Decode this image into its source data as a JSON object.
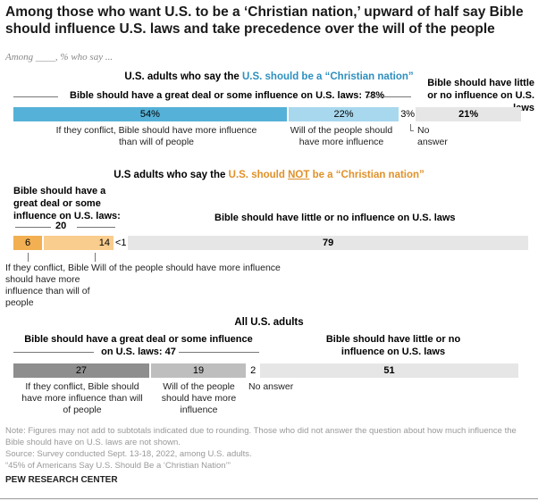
{
  "title": "Among those who want U.S. to be a ‘Christian nation,’ upward of half say Bible should influence U.S. laws and take precedence over the will of the people",
  "subtitle": "Among ____, % who say ...",
  "colors": {
    "blue_dark": "#55b1d7",
    "blue_light": "#a8d8ee",
    "orange_dark": "#f2b052",
    "orange_light": "#f9cd8d",
    "gray_dark": "#8e8e8e",
    "gray_mid": "#bebebe",
    "gray_light": "#e6e6e6"
  },
  "chart_data": [
    {
      "type": "bar",
      "orientation": "horizontal-stacked",
      "group_title_pre": "U.S. adults who say the ",
      "group_title_hl": "U.S. should be a “Christian nation”",
      "header_left": "Bible should have a great deal or some influence on U.S. laws: 78%",
      "header_right": "Bible should have little or no influence on U.S. laws",
      "segments": [
        {
          "label": "If they conflict, Bible should have more influence than will of people",
          "value": 54,
          "text": "54%"
        },
        {
          "label": "Will of the people should have more influence",
          "value": 22,
          "text": "22%"
        },
        {
          "label": "No answer",
          "value": 3,
          "text": "3%"
        },
        {
          "label": "",
          "value": 21,
          "text": "21%"
        }
      ]
    },
    {
      "type": "bar",
      "orientation": "horizontal-stacked",
      "group_title_pre": "U.S adults who say the ",
      "group_title_hl1": "U.S. should ",
      "group_title_hl2": "NOT",
      "group_title_hl3": " be a “Christian nation”",
      "header_left": "Bible should have a great deal or some influence on U.S. laws:",
      "header_left_value": "20",
      "header_right": "Bible should have little or no influence on U.S. laws",
      "segments": [
        {
          "label": "If they conflict, Bible should have more influence than will of people",
          "value": 6,
          "text": "6"
        },
        {
          "label": "Will of the people should have more influence",
          "value": 14,
          "text": "14"
        },
        {
          "label": "",
          "value": 0.5,
          "text": "<1"
        },
        {
          "label": "",
          "value": 79,
          "text": "79"
        }
      ]
    },
    {
      "type": "bar",
      "orientation": "horizontal-stacked",
      "group_title": "All U.S. adults",
      "header_left": "Bible should have a great deal or some influence on U.S. laws: 47",
      "header_right": "Bible should have little or no influence on U.S. laws",
      "segments": [
        {
          "label": "If they conflict, Bible should have more influence than will of people",
          "value": 27,
          "text": "27"
        },
        {
          "label": "Will of the people should have more influence",
          "value": 19,
          "text": "19"
        },
        {
          "label": "No answer",
          "value": 2,
          "text": "2"
        },
        {
          "label": "",
          "value": 51,
          "text": "51"
        }
      ]
    }
  ],
  "notes": {
    "note": "Note: Figures may not add to subtotals indicated due to rounding. Those who did not answer the question about how much influence the Bible should have on U.S. laws are not shown.",
    "source": "Source: Survey conducted Sept. 13-18, 2022, among U.S. adults.",
    "report": "“45% of Americans Say U.S. Should Be a ‘Christian Nation’”",
    "brand": "PEW RESEARCH CENTER"
  }
}
